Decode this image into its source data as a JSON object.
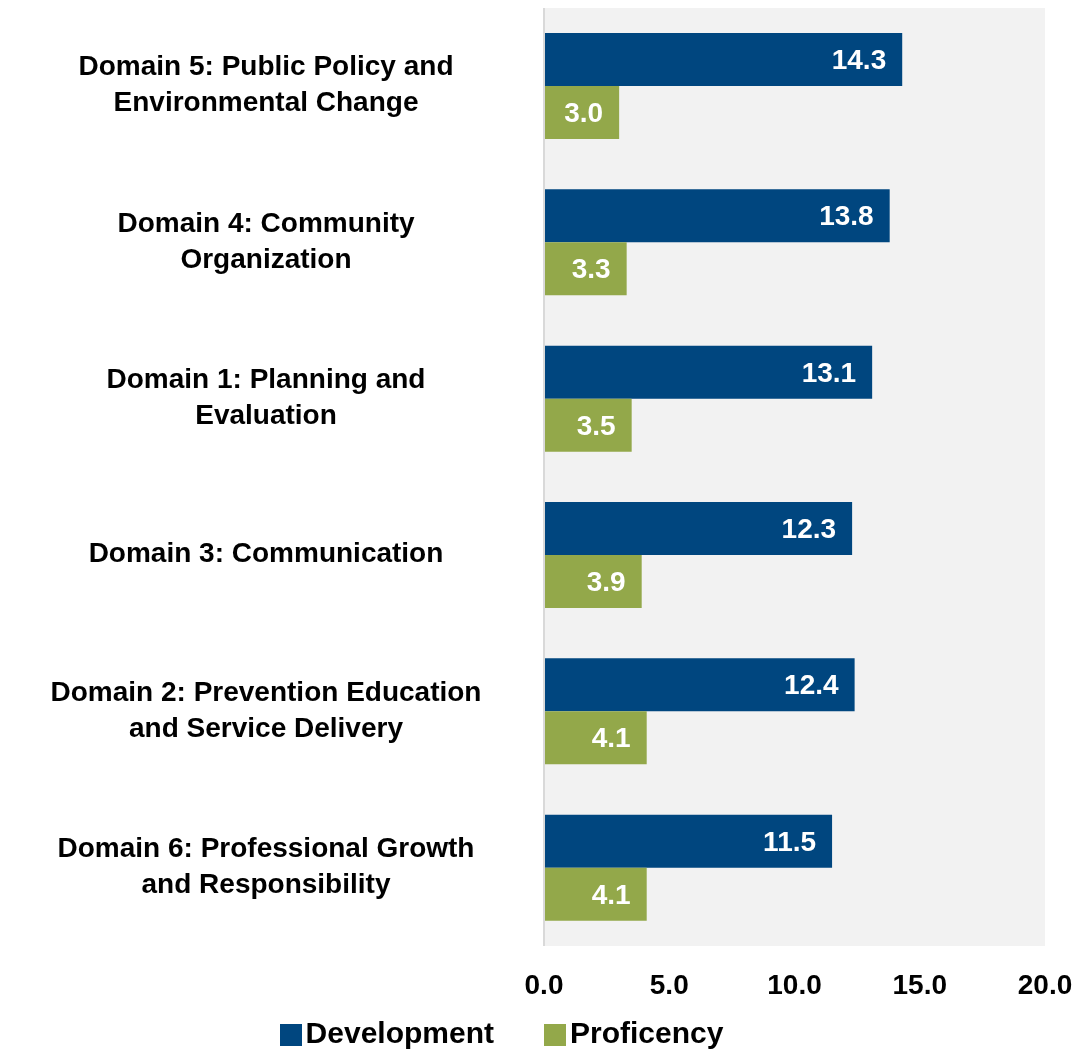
{
  "chart_data": {
    "type": "bar",
    "orientation": "horizontal",
    "categories": [
      "Domain 5: Public Policy and Environmental Change",
      "Domain 4: Community Organization",
      "Domain 1: Planning and Evaluation",
      "Domain 3: Communication",
      "Domain 2: Prevention Education and Service Delivery",
      "Domain 6: Professional Growth and Responsibility"
    ],
    "series": [
      {
        "name": "Development",
        "color": "#00467f",
        "values": [
          14.3,
          13.8,
          13.1,
          12.3,
          12.4,
          11.5
        ],
        "value_labels": [
          "14.3",
          "13.8",
          "13.1",
          "12.3",
          "12.4",
          "11.5"
        ]
      },
      {
        "name": "Proficency",
        "color": "#93a84a",
        "values": [
          3.0,
          3.3,
          3.5,
          3.9,
          4.1,
          4.1
        ],
        "value_labels": [
          "3.0",
          "3.3",
          "3.5",
          "3.9",
          "4.1",
          "4.1"
        ]
      }
    ],
    "xlim": [
      0,
      20
    ],
    "xticks": [
      {
        "value": 0,
        "label": "0.0"
      },
      {
        "value": 5,
        "label": "5.0"
      },
      {
        "value": 10,
        "label": "10.0"
      },
      {
        "value": 15,
        "label": "15.0"
      },
      {
        "value": 20,
        "label": "20.0"
      }
    ],
    "legend": "bottom",
    "grid": false
  }
}
